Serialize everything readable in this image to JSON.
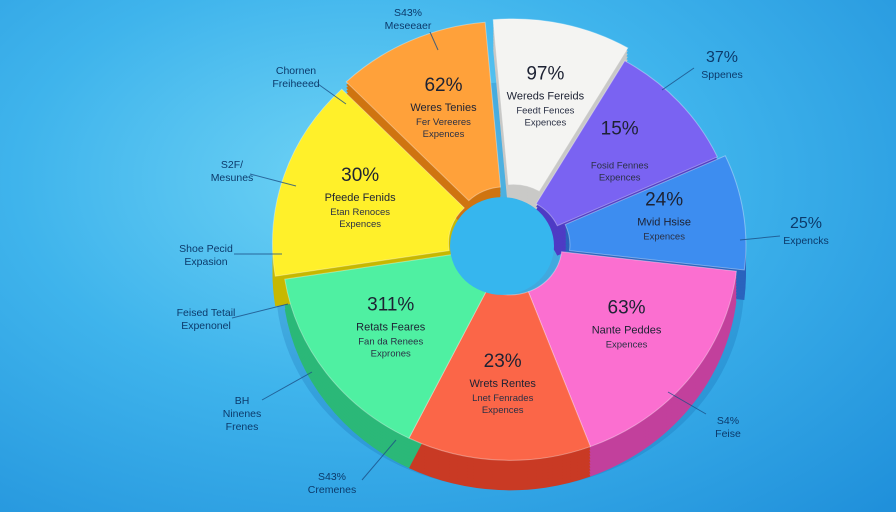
{
  "chart_data": {
    "type": "pie",
    "title": "",
    "slices": [
      {
        "label": "Wereds Fereids",
        "percent_label": "97%",
        "sub1": "Feedt Fences",
        "sub2": "Expences",
        "color": "#f4f4f2",
        "side": "#c9c9c7",
        "value": 9
      },
      {
        "label": "",
        "percent_label": "15%",
        "sub1": "Fosid Fennes",
        "sub2": "Expences",
        "color": "#7a63f2",
        "side": "#4e3bc4",
        "value": 9
      },
      {
        "label": "Mvid Hsise",
        "percent_label": "24%",
        "sub1": "Expences",
        "sub2": "",
        "color": "#3d8df0",
        "side": "#2a63bd",
        "value": 8
      },
      {
        "label": "Nante Peddes",
        "percent_label": "63%",
        "sub1": "Expences",
        "sub2": "",
        "color": "#fb6fd0",
        "side": "#c2409c",
        "value": 16
      },
      {
        "label": "Wrets Rentes",
        "percent_label": "23%",
        "sub1": "Lnet Fenrades",
        "sub2": "Expences",
        "color": "#fb6648",
        "side": "#c93a24",
        "value": 12
      },
      {
        "label": "Retats Feares",
        "percent_label": "311%",
        "sub1": "Fan da Renees",
        "sub2": "Exprones",
        "color": "#4ff0a2",
        "side": "#2bb878",
        "value": 14
      },
      {
        "label": "Pfeede Fenids",
        "percent_label": "30%",
        "sub1": "Etan Renoces",
        "sub2": "Expences",
        "color": "#fff02a",
        "side": "#c7b800",
        "value": 14
      },
      {
        "label": "Weres Tenies",
        "percent_label": "62%",
        "sub1": "Fer Vereeres",
        "sub2": "Expences",
        "color": "#ffa13a",
        "side": "#cf7410",
        "value": 10
      }
    ],
    "callouts": [
      {
        "line1": "S43%",
        "line2": "Meseeaer"
      },
      {
        "line1": "Chornen",
        "line2": "Freiheeed"
      },
      {
        "line1": "S2F/",
        "line2": "Mesunes"
      },
      {
        "line1": "Shoe Pecid",
        "line2": "Expasion"
      },
      {
        "line1": "Feised Tetail",
        "line2": "Expenonel"
      },
      {
        "line1": "BH",
        "line2": "Ninenes",
        "line3": "Frenes"
      },
      {
        "line1": "S43%",
        "line2": "Cremenes"
      },
      {
        "line1": "S4%",
        "line2": "Feise"
      },
      {
        "line1": "25%",
        "line2": "Expencks"
      },
      {
        "line1": "37%",
        "line2": "Sppenes"
      }
    ]
  }
}
